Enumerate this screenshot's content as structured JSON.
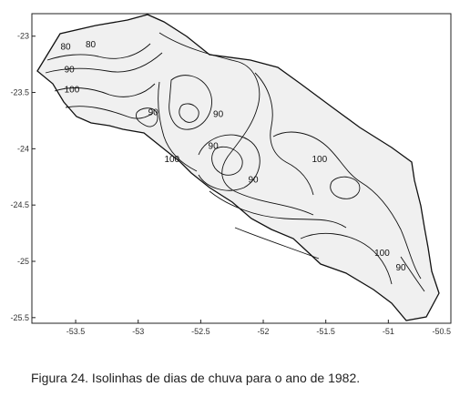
{
  "figure": {
    "caption": "Figura 24. Isolinhas de dias de chuva para o ano de 1982."
  },
  "map": {
    "axes": {
      "x_ticks": [
        "-53.5",
        "-53",
        "-52.5",
        "-52",
        "-51.5",
        "-51",
        "-50.5"
      ],
      "y_ticks": [
        "-23",
        "-23.5",
        "-24",
        "-24.5",
        "-25",
        "-25.5"
      ],
      "x_range": [
        -53.85,
        -50.5
      ],
      "y_range": [
        -25.55,
        -22.8
      ]
    },
    "isoline_labels": [
      {
        "text": "80",
        "lon": -53.58,
        "lat": -23.12
      },
      {
        "text": "80",
        "lon": -53.38,
        "lat": -23.1
      },
      {
        "text": "90",
        "lon": -53.55,
        "lat": -23.32
      },
      {
        "text": "100",
        "lon": -53.53,
        "lat": -23.5
      },
      {
        "text": "90",
        "lon": -52.88,
        "lat": -23.7
      },
      {
        "text": "90",
        "lon": -52.36,
        "lat": -23.72
      },
      {
        "text": "90",
        "lon": -52.4,
        "lat": -24.0
      },
      {
        "text": "100",
        "lon": -52.73,
        "lat": -24.12
      },
      {
        "text": "90",
        "lon": -52.08,
        "lat": -24.3
      },
      {
        "text": "100",
        "lon": -51.55,
        "lat": -24.12
      },
      {
        "text": "100",
        "lon": -51.05,
        "lat": -24.95
      },
      {
        "text": "90",
        "lon": -50.9,
        "lat": -25.08
      }
    ],
    "colors": {
      "region_fill": "#f0f0f0",
      "line": "#111111",
      "frame": "#222222"
    }
  }
}
